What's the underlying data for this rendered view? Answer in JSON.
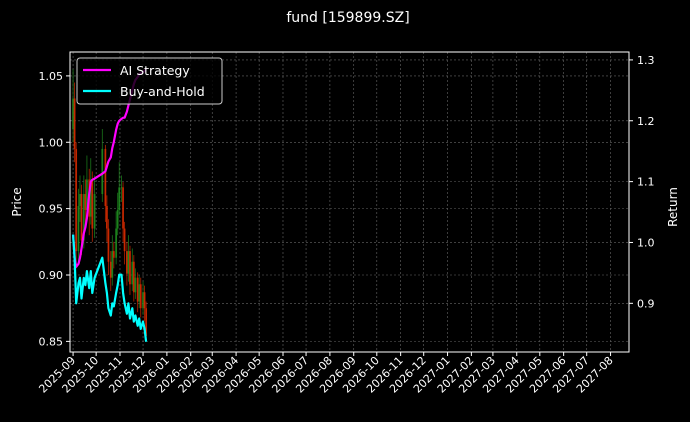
{
  "chart_data": {
    "type": "line",
    "title": "fund [159899.SZ]",
    "ylabel": "Price",
    "ylabel_right": "Return",
    "xlabel": "",
    "grid": true,
    "legend_position": "top-left",
    "background": "#000000",
    "xlim": [
      "2025-08-28",
      "2027-08-25"
    ],
    "ylim": [
      0.842,
      1.068
    ],
    "ylim_right": [
      0.82,
      1.313
    ],
    "x_ticks": [
      "2025-09",
      "2025-10",
      "2025-11",
      "2025-12",
      "2026-01",
      "2026-02",
      "2026-03",
      "2026-04",
      "2026-05",
      "2026-06",
      "2026-07",
      "2026-08",
      "2026-09",
      "2026-10",
      "2026-11",
      "2026-12",
      "2027-01",
      "2027-02",
      "2027-03",
      "2027-04",
      "2027-05",
      "2027-06",
      "2027-07",
      "2027-08"
    ],
    "y_ticks": [
      "0.85",
      "0.90",
      "0.95",
      "1.00",
      "1.05"
    ],
    "y_ticks_right": [
      "0.9",
      "1.0",
      "1.1",
      "1.2",
      "1.3"
    ],
    "dates": [
      "2025-09-01",
      "2025-09-03",
      "2025-09-05",
      "2025-09-08",
      "2025-09-10",
      "2025-09-12",
      "2025-09-15",
      "2025-09-17",
      "2025-09-19",
      "2025-09-22",
      "2025-09-24",
      "2025-09-26",
      "2025-09-29",
      "2025-10-09",
      "2025-10-13",
      "2025-10-15",
      "2025-10-17",
      "2025-10-20",
      "2025-10-22",
      "2025-10-24",
      "2025-10-27",
      "2025-10-29",
      "2025-10-31",
      "2025-11-03",
      "2025-11-05",
      "2025-11-07",
      "2025-11-10",
      "2025-11-12",
      "2025-11-14",
      "2025-11-17",
      "2025-11-19",
      "2025-11-21",
      "2025-11-24",
      "2025-11-26",
      "2025-11-28",
      "2025-12-01",
      "2025-12-03",
      "2025-12-05"
    ],
    "candles_ohlc": [
      [
        1.01,
        1.055,
        1.0,
        1.033
      ],
      [
        1.033,
        1.045,
        0.985,
        0.995
      ],
      [
        0.995,
        1.0,
        0.905,
        0.918
      ],
      [
        0.918,
        0.965,
        0.91,
        0.952
      ],
      [
        0.952,
        0.975,
        0.94,
        0.961
      ],
      [
        0.961,
        0.968,
        0.915,
        0.926
      ],
      [
        0.926,
        0.975,
        0.92,
        0.961
      ],
      [
        0.961,
        0.972,
        0.938,
        0.949
      ],
      [
        0.949,
        0.99,
        0.942,
        0.972
      ],
      [
        0.972,
        0.98,
        0.93,
        0.944
      ],
      [
        0.944,
        0.988,
        0.938,
        0.972
      ],
      [
        0.972,
        0.978,
        0.925,
        0.935
      ],
      [
        0.935,
        0.975,
        0.928,
        0.961
      ],
      [
        0.961,
        1.01,
        0.955,
        0.995
      ],
      [
        0.995,
        0.998,
        0.94,
        0.952
      ],
      [
        0.952,
        0.96,
        0.925,
        0.935
      ],
      [
        0.935,
        0.942,
        0.9,
        0.91
      ],
      [
        0.91,
        0.918,
        0.888,
        0.898
      ],
      [
        0.898,
        0.93,
        0.892,
        0.918
      ],
      [
        0.918,
        0.925,
        0.905,
        0.913
      ],
      [
        0.913,
        0.948,
        0.908,
        0.935
      ],
      [
        0.935,
        0.962,
        0.93,
        0.949
      ],
      [
        0.949,
        0.985,
        0.945,
        0.966
      ],
      [
        0.966,
        0.975,
        0.955,
        0.966
      ],
      [
        0.966,
        0.97,
        0.925,
        0.935
      ],
      [
        0.935,
        0.94,
        0.908,
        0.918
      ],
      [
        0.918,
        0.925,
        0.892,
        0.901
      ],
      [
        0.901,
        0.93,
        0.895,
        0.918
      ],
      [
        0.918,
        0.922,
        0.885,
        0.893
      ],
      [
        0.893,
        0.92,
        0.888,
        0.91
      ],
      [
        0.91,
        0.915,
        0.88,
        0.887
      ],
      [
        0.887,
        0.905,
        0.882,
        0.898
      ],
      [
        0.898,
        0.902,
        0.872,
        0.88
      ],
      [
        0.88,
        0.9,
        0.875,
        0.893
      ],
      [
        0.893,
        0.898,
        0.868,
        0.875
      ],
      [
        0.875,
        0.895,
        0.87,
        0.887
      ],
      [
        0.887,
        0.892,
        0.865,
        0.875
      ],
      [
        0.875,
        0.88,
        0.85,
        0.854
      ]
    ],
    "candle_colors": {
      "up": "#1f8a1f",
      "down": "#d42a00"
    },
    "series": [
      {
        "name": "AI Strategy",
        "axis": "right",
        "color": "#ff00ff",
        "values": [
          1.013,
          0.975,
          0.96,
          0.965,
          0.975,
          0.99,
          1.015,
          1.025,
          1.04,
          1.08,
          1.1,
          1.103,
          1.105,
          1.113,
          1.117,
          1.125,
          1.133,
          1.14,
          1.155,
          1.165,
          1.185,
          1.195,
          1.2,
          1.203,
          1.205,
          1.205,
          1.215,
          1.225,
          1.235,
          1.25,
          1.26,
          1.267,
          1.272,
          1.277,
          1.278,
          1.28,
          1.282,
          1.285
        ]
      },
      {
        "name": "Buy-and-Hold",
        "axis": "right",
        "color": "#00ffff",
        "values": [
          1.013,
          0.975,
          0.9,
          0.933,
          0.942,
          0.908,
          0.942,
          0.93,
          0.953,
          0.925,
          0.953,
          0.917,
          0.942,
          0.975,
          0.933,
          0.917,
          0.892,
          0.88,
          0.9,
          0.895,
          0.917,
          0.93,
          0.947,
          0.947,
          0.917,
          0.9,
          0.883,
          0.9,
          0.875,
          0.892,
          0.87,
          0.88,
          0.863,
          0.875,
          0.858,
          0.87,
          0.858,
          0.837
        ]
      }
    ]
  }
}
